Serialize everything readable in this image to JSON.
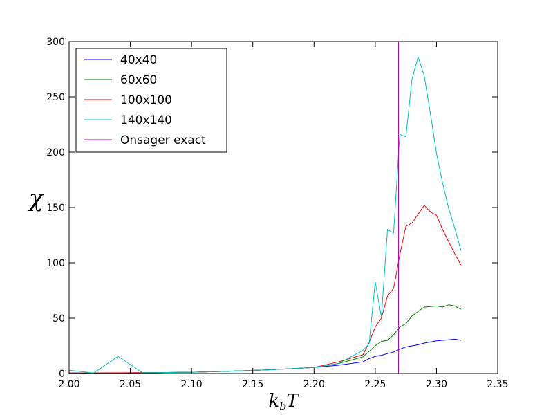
{
  "chart_data": {
    "type": "line",
    "xlabel_main": "k",
    "xlabel_sub": "b",
    "xlabel_tail": "T",
    "ylabel": "χ",
    "xlim": [
      2.0,
      2.35
    ],
    "ylim": [
      0,
      300
    ],
    "xticks": [
      2.0,
      2.05,
      2.1,
      2.15,
      2.2,
      2.25,
      2.3,
      2.35
    ],
    "xtick_labels": [
      "2.00",
      "2.05",
      "2.10",
      "2.15",
      "2.20",
      "2.25",
      "2.30",
      "2.35"
    ],
    "yticks": [
      0,
      50,
      100,
      150,
      200,
      250,
      300
    ],
    "ytick_labels": [
      "0",
      "50",
      "100",
      "150",
      "200",
      "250",
      "300"
    ],
    "grid": false,
    "legend_position": "top-left",
    "series": [
      {
        "name": "40x40",
        "color": "#0000ff",
        "x": [
          2.0,
          2.02,
          2.04,
          2.06,
          2.08,
          2.1,
          2.12,
          2.14,
          2.16,
          2.18,
          2.2,
          2.22,
          2.24,
          2.245,
          2.25,
          2.255,
          2.26,
          2.265,
          2.27,
          2.275,
          2.28,
          2.285,
          2.29,
          2.295,
          2.3,
          2.305,
          2.31,
          2.315,
          2.32
        ],
        "values": [
          0.5,
          0.5,
          0.6,
          0.7,
          0.9,
          1.2,
          1.7,
          2.4,
          3.2,
          4.3,
          5.5,
          7.5,
          10.5,
          13.5,
          15.5,
          16.5,
          18.0,
          19.5,
          22.0,
          24.0,
          25.0,
          26.0,
          27.5,
          28.5,
          29.5,
          30.0,
          30.5,
          31.0,
          30.0
        ]
      },
      {
        "name": "60x60",
        "color": "#008000",
        "x": [
          2.0,
          2.02,
          2.04,
          2.06,
          2.08,
          2.1,
          2.12,
          2.14,
          2.16,
          2.18,
          2.2,
          2.22,
          2.24,
          2.245,
          2.25,
          2.255,
          2.26,
          2.265,
          2.27,
          2.275,
          2.28,
          2.285,
          2.29,
          2.295,
          2.3,
          2.305,
          2.31,
          2.315,
          2.32
        ],
        "values": [
          0.5,
          0.5,
          0.6,
          0.7,
          0.9,
          1.2,
          1.7,
          2.4,
          3.2,
          4.3,
          5.5,
          9.0,
          15.0,
          20.0,
          25.0,
          29.0,
          30.0,
          35.0,
          42.0,
          45.0,
          52.0,
          56.0,
          60.0,
          60.5,
          61.0,
          60.0,
          62.0,
          61.0,
          58.0
        ]
      },
      {
        "name": "100x100",
        "color": "#ff0000",
        "x": [
          2.0,
          2.02,
          2.04,
          2.06,
          2.08,
          2.1,
          2.12,
          2.14,
          2.16,
          2.18,
          2.2,
          2.22,
          2.24,
          2.245,
          2.25,
          2.255,
          2.26,
          2.265,
          2.27,
          2.275,
          2.28,
          2.285,
          2.29,
          2.295,
          2.3,
          2.305,
          2.31,
          2.315,
          2.32
        ],
        "values": [
          0.5,
          0.5,
          0.6,
          0.7,
          0.9,
          1.2,
          1.7,
          2.4,
          3.2,
          4.3,
          5.5,
          10.5,
          17.0,
          28.0,
          42.0,
          50.0,
          70.0,
          77.0,
          107.0,
          133.0,
          136.0,
          144.0,
          152.0,
          146.0,
          143.0,
          130.0,
          119.0,
          108.0,
          98.0
        ]
      },
      {
        "name": "140x140",
        "color": "#00bfbf",
        "x": [
          2.0,
          2.02,
          2.04,
          2.06,
          2.08,
          2.1,
          2.12,
          2.14,
          2.16,
          2.18,
          2.2,
          2.22,
          2.24,
          2.245,
          2.25,
          2.255,
          2.26,
          2.265,
          2.27,
          2.275,
          2.28,
          2.285,
          2.29,
          2.295,
          2.3,
          2.305,
          2.31,
          2.315,
          2.32
        ],
        "values": [
          3.0,
          0.5,
          15.5,
          0.7,
          0.9,
          1.2,
          1.7,
          2.4,
          3.2,
          4.3,
          5.5,
          9.0,
          21.0,
          27.0,
          83.0,
          51.0,
          130.0,
          127.0,
          216.0,
          214.0,
          266.0,
          286.0,
          269.0,
          235.0,
          199.0,
          172.0,
          149.0,
          131.0,
          111.0
        ]
      }
    ],
    "vlines": [
      {
        "name": "Onsager exact",
        "color": "#bf00bf",
        "x": 2.269
      }
    ]
  }
}
